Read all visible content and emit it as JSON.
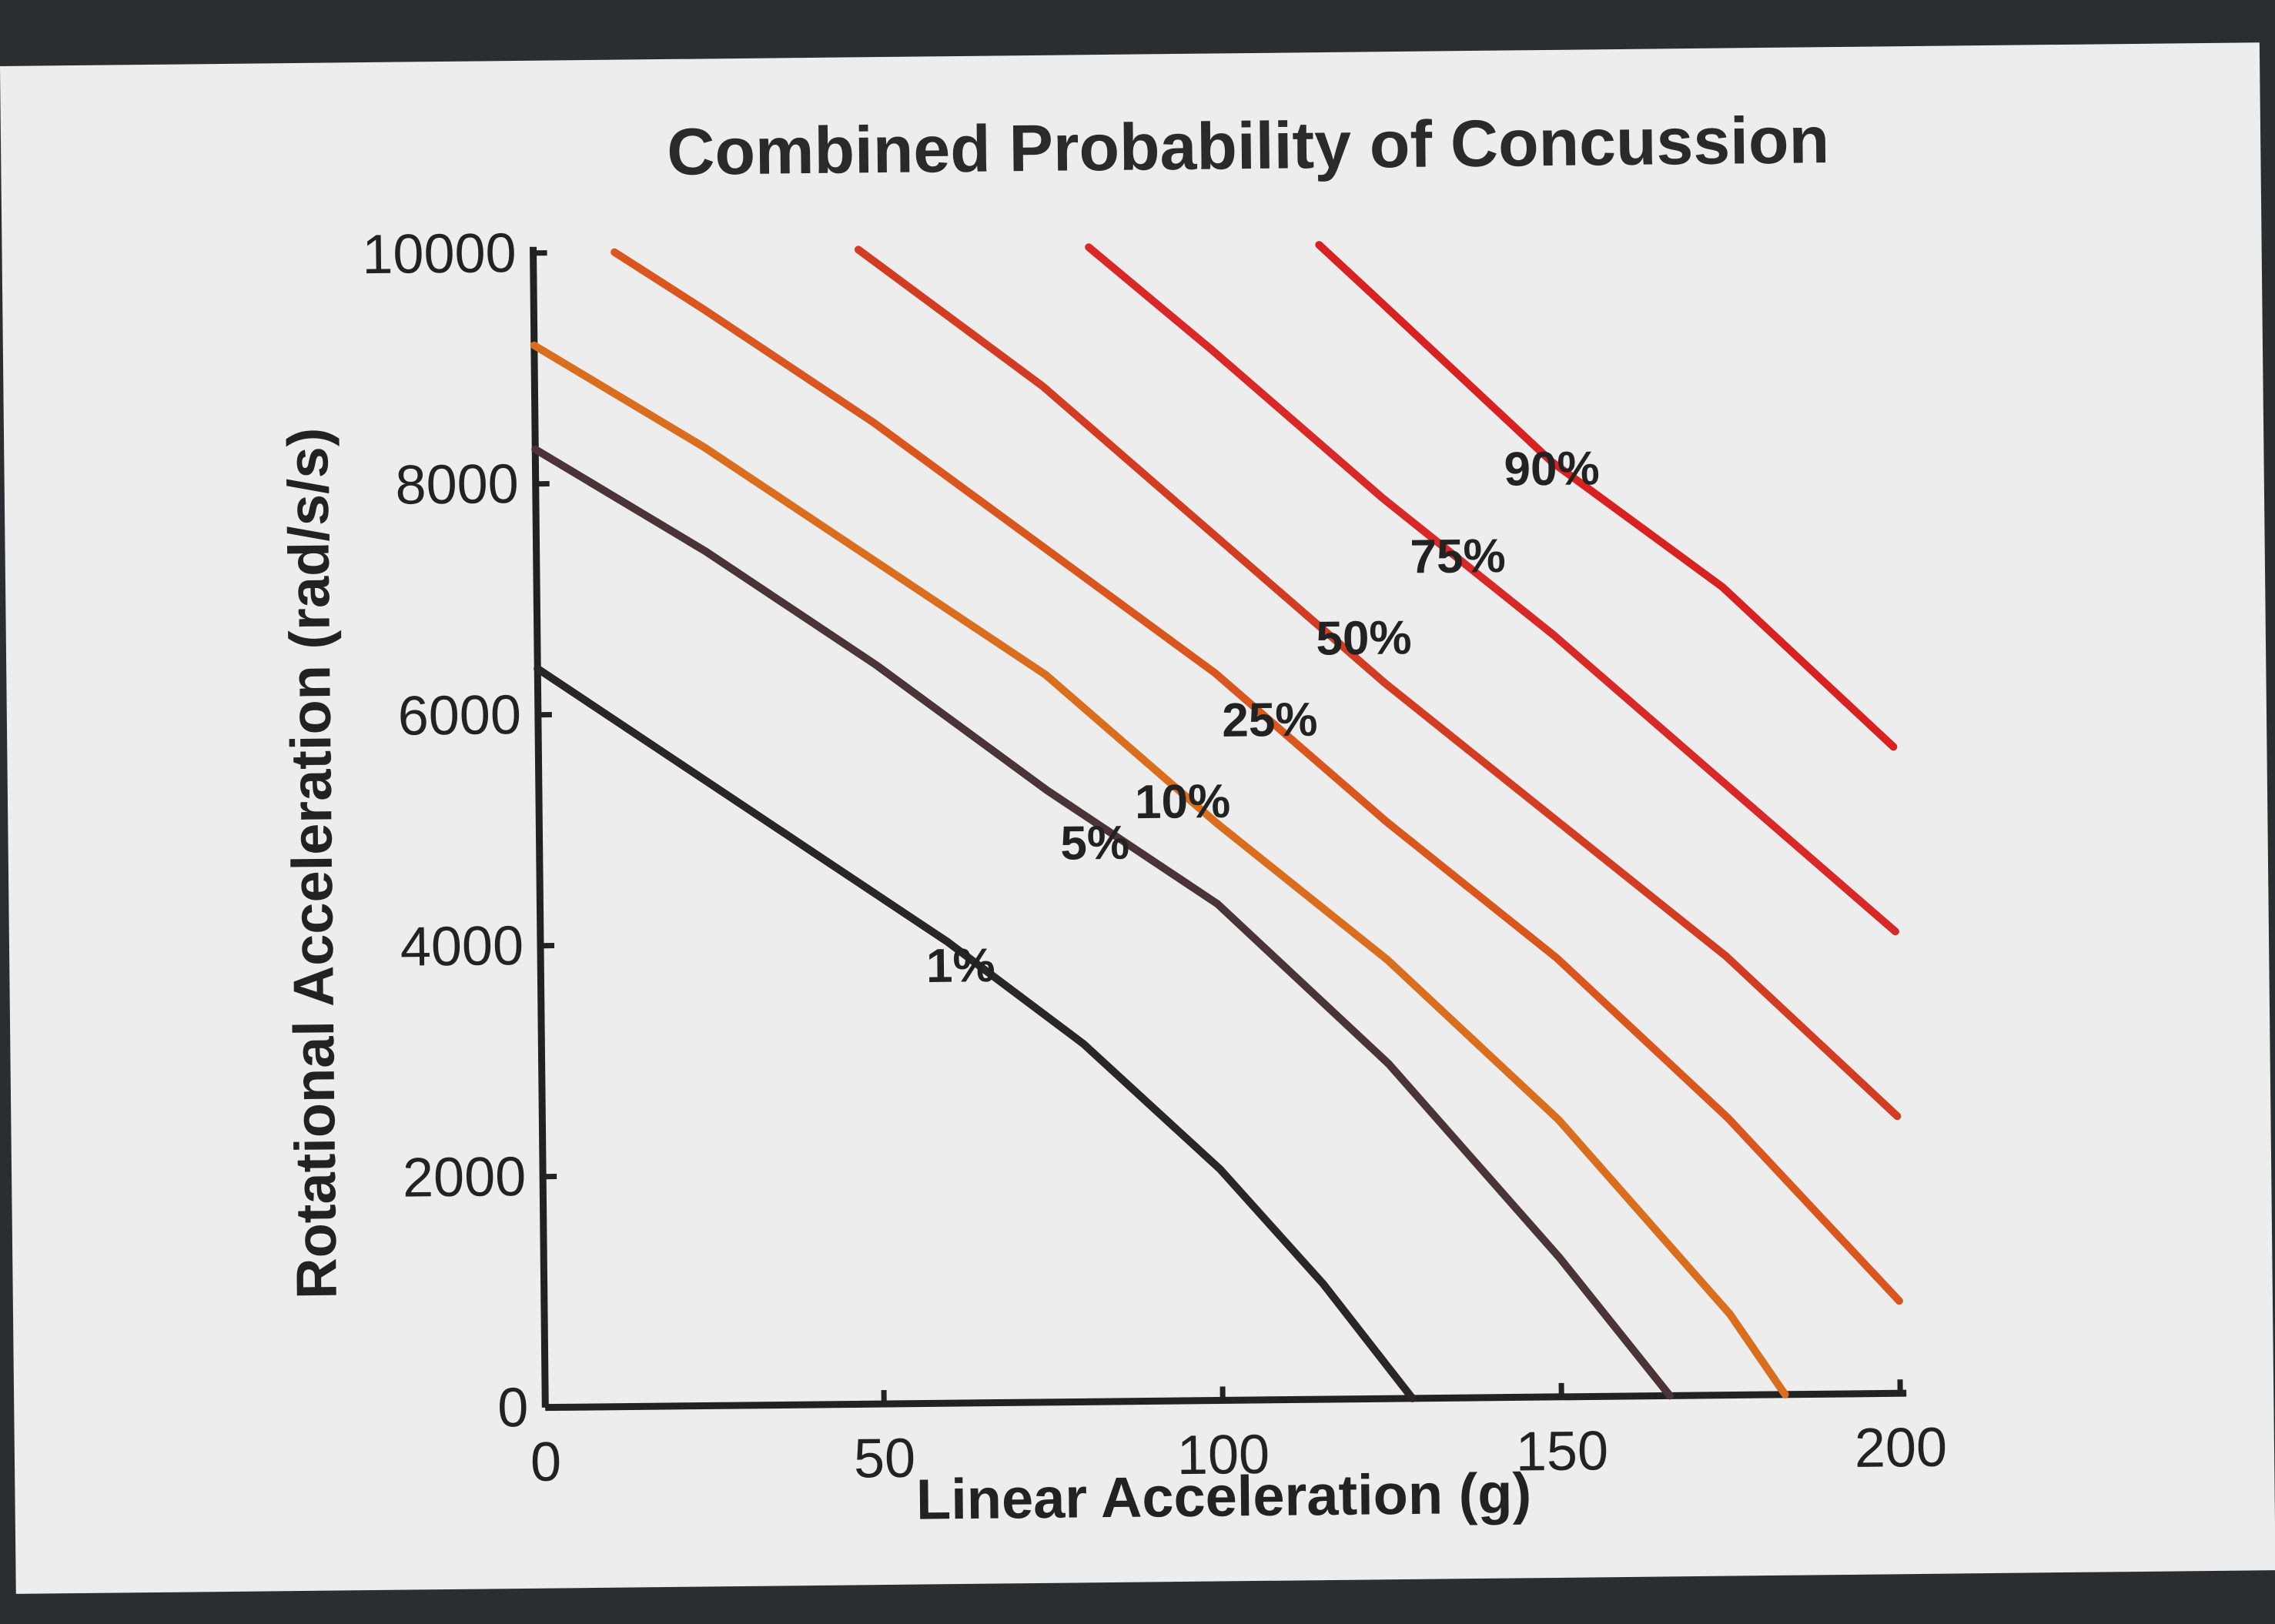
{
  "chart_data": {
    "type": "line",
    "title": "Combined Probability of Concussion",
    "xlabel": "Linear Acceleration (g)",
    "ylabel": "Rotational Acceleration (rad/s/s)",
    "xlim": [
      0,
      200
    ],
    "ylim": [
      0,
      10000
    ],
    "xticks": [
      "0",
      "50",
      "100",
      "150",
      "200"
    ],
    "yticks": [
      "0",
      "2000",
      "4000",
      "6000",
      "8000",
      "10000"
    ],
    "grid": false,
    "legend": "none",
    "series": [
      {
        "name": "1%",
        "color": "#2a2527",
        "x": [
          0,
          20,
          40,
          60,
          80,
          100,
          115,
          128
        ],
        "y": [
          6400,
          5600,
          4800,
          4000,
          3100,
          2000,
          1000,
          0
        ],
        "label_at": [
          62,
          3650
        ]
      },
      {
        "name": "5%",
        "color": "#4a3437",
        "x": [
          0,
          25,
          50,
          75,
          100,
          125,
          150,
          166
        ],
        "y": [
          8300,
          7400,
          6400,
          5300,
          4300,
          2900,
          1200,
          0
        ],
        "label_at": [
          82,
          4700
        ]
      },
      {
        "name": "10%",
        "color": "#d96f1e",
        "x": [
          0,
          25,
          50,
          75,
          100,
          125,
          150,
          175,
          183
        ],
        "y": [
          9200,
          8300,
          7300,
          6300,
          5000,
          3800,
          2400,
          700,
          0
        ],
        "label_at": [
          95,
          5050
        ]
      },
      {
        "name": "25%",
        "color": "#d9571f",
        "x": [
          12,
          25,
          50,
          75,
          100,
          125,
          150,
          175,
          200
        ],
        "y": [
          10000,
          9500,
          8500,
          7400,
          6300,
          5000,
          3800,
          2400,
          800
        ],
        "label_at": [
          108,
          5750
        ]
      },
      {
        "name": "50%",
        "color": "#d23c22",
        "x": [
          48,
          75,
          100,
          125,
          150,
          175,
          200
        ],
        "y": [
          10000,
          8800,
          7500,
          6200,
          5000,
          3800,
          2400
        ],
        "label_at": [
          122,
          6450
        ]
      },
      {
        "name": "75%",
        "color": "#d82828",
        "x": [
          82,
          100,
          125,
          150,
          175,
          200
        ],
        "y": [
          10000,
          9100,
          7800,
          6600,
          5300,
          4000
        ],
        "label_at": [
          136,
          7150
        ]
      },
      {
        "name": "90%",
        "color": "#d82222",
        "x": [
          116,
          125,
          150,
          175,
          200
        ],
        "y": [
          10000,
          9500,
          8100,
          7000,
          5600
        ],
        "label_at": [
          150,
          7900
        ]
      }
    ]
  }
}
